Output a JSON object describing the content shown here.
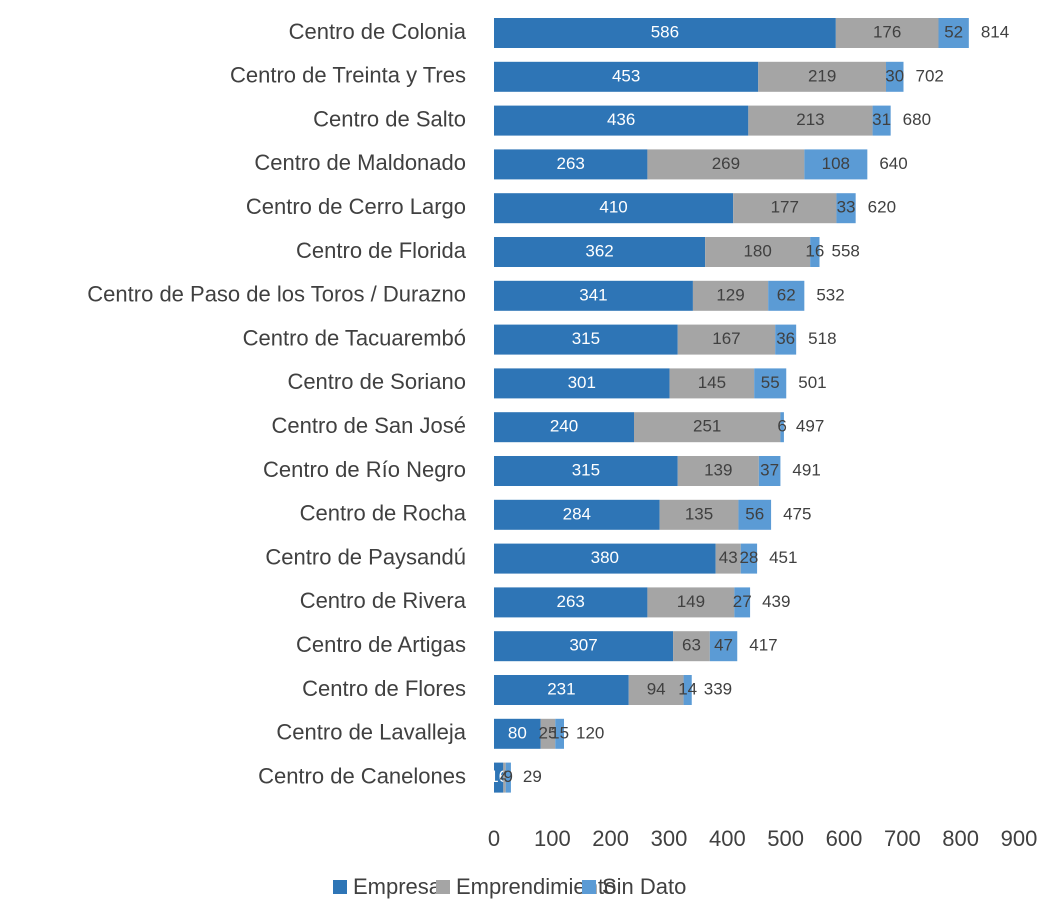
{
  "chart_data": {
    "type": "stacked_bar_horizontal",
    "categories": [
      "Centro de Colonia",
      "Centro de Treinta y Tres",
      "Centro de Salto",
      "Centro de Maldonado",
      "Centro de Cerro Largo",
      "Centro de Florida",
      "Centro de Paso de los Toros / Durazno",
      "Centro de Tacuarembó",
      "Centro de Soriano",
      "Centro de San José",
      "Centro de Río Negro",
      "Centro de Rocha",
      "Centro de Paysandú",
      "Centro de Rivera",
      "Centro de Artigas",
      "Centro de Flores",
      "Centro de Lavalleja",
      "Centro de Canelones"
    ],
    "series": [
      {
        "name": "Empresa",
        "color": "#2e75b6",
        "values": [
          586,
          453,
          436,
          263,
          410,
          362,
          341,
          315,
          301,
          240,
          315,
          284,
          380,
          263,
          307,
          231,
          80,
          16
        ]
      },
      {
        "name": "Emprendimiento",
        "color": "#a5a5a5",
        "values": [
          176,
          219,
          213,
          269,
          177,
          180,
          129,
          167,
          145,
          251,
          139,
          135,
          43,
          149,
          63,
          94,
          25,
          4
        ]
      },
      {
        "name": "Sin Dato",
        "color": "#5b9bd5",
        "values": [
          52,
          30,
          31,
          108,
          33,
          16,
          62,
          36,
          55,
          6,
          37,
          56,
          28,
          27,
          47,
          14,
          15,
          9
        ]
      }
    ],
    "totals": [
      814,
      702,
      680,
      640,
      620,
      558,
      532,
      518,
      501,
      497,
      491,
      475,
      451,
      439,
      417,
      339,
      120,
      29
    ],
    "xlim": [
      0,
      900
    ],
    "xticks": [
      0,
      100,
      200,
      300,
      400,
      500,
      600,
      700,
      800,
      900
    ],
    "legend": "bottom"
  }
}
